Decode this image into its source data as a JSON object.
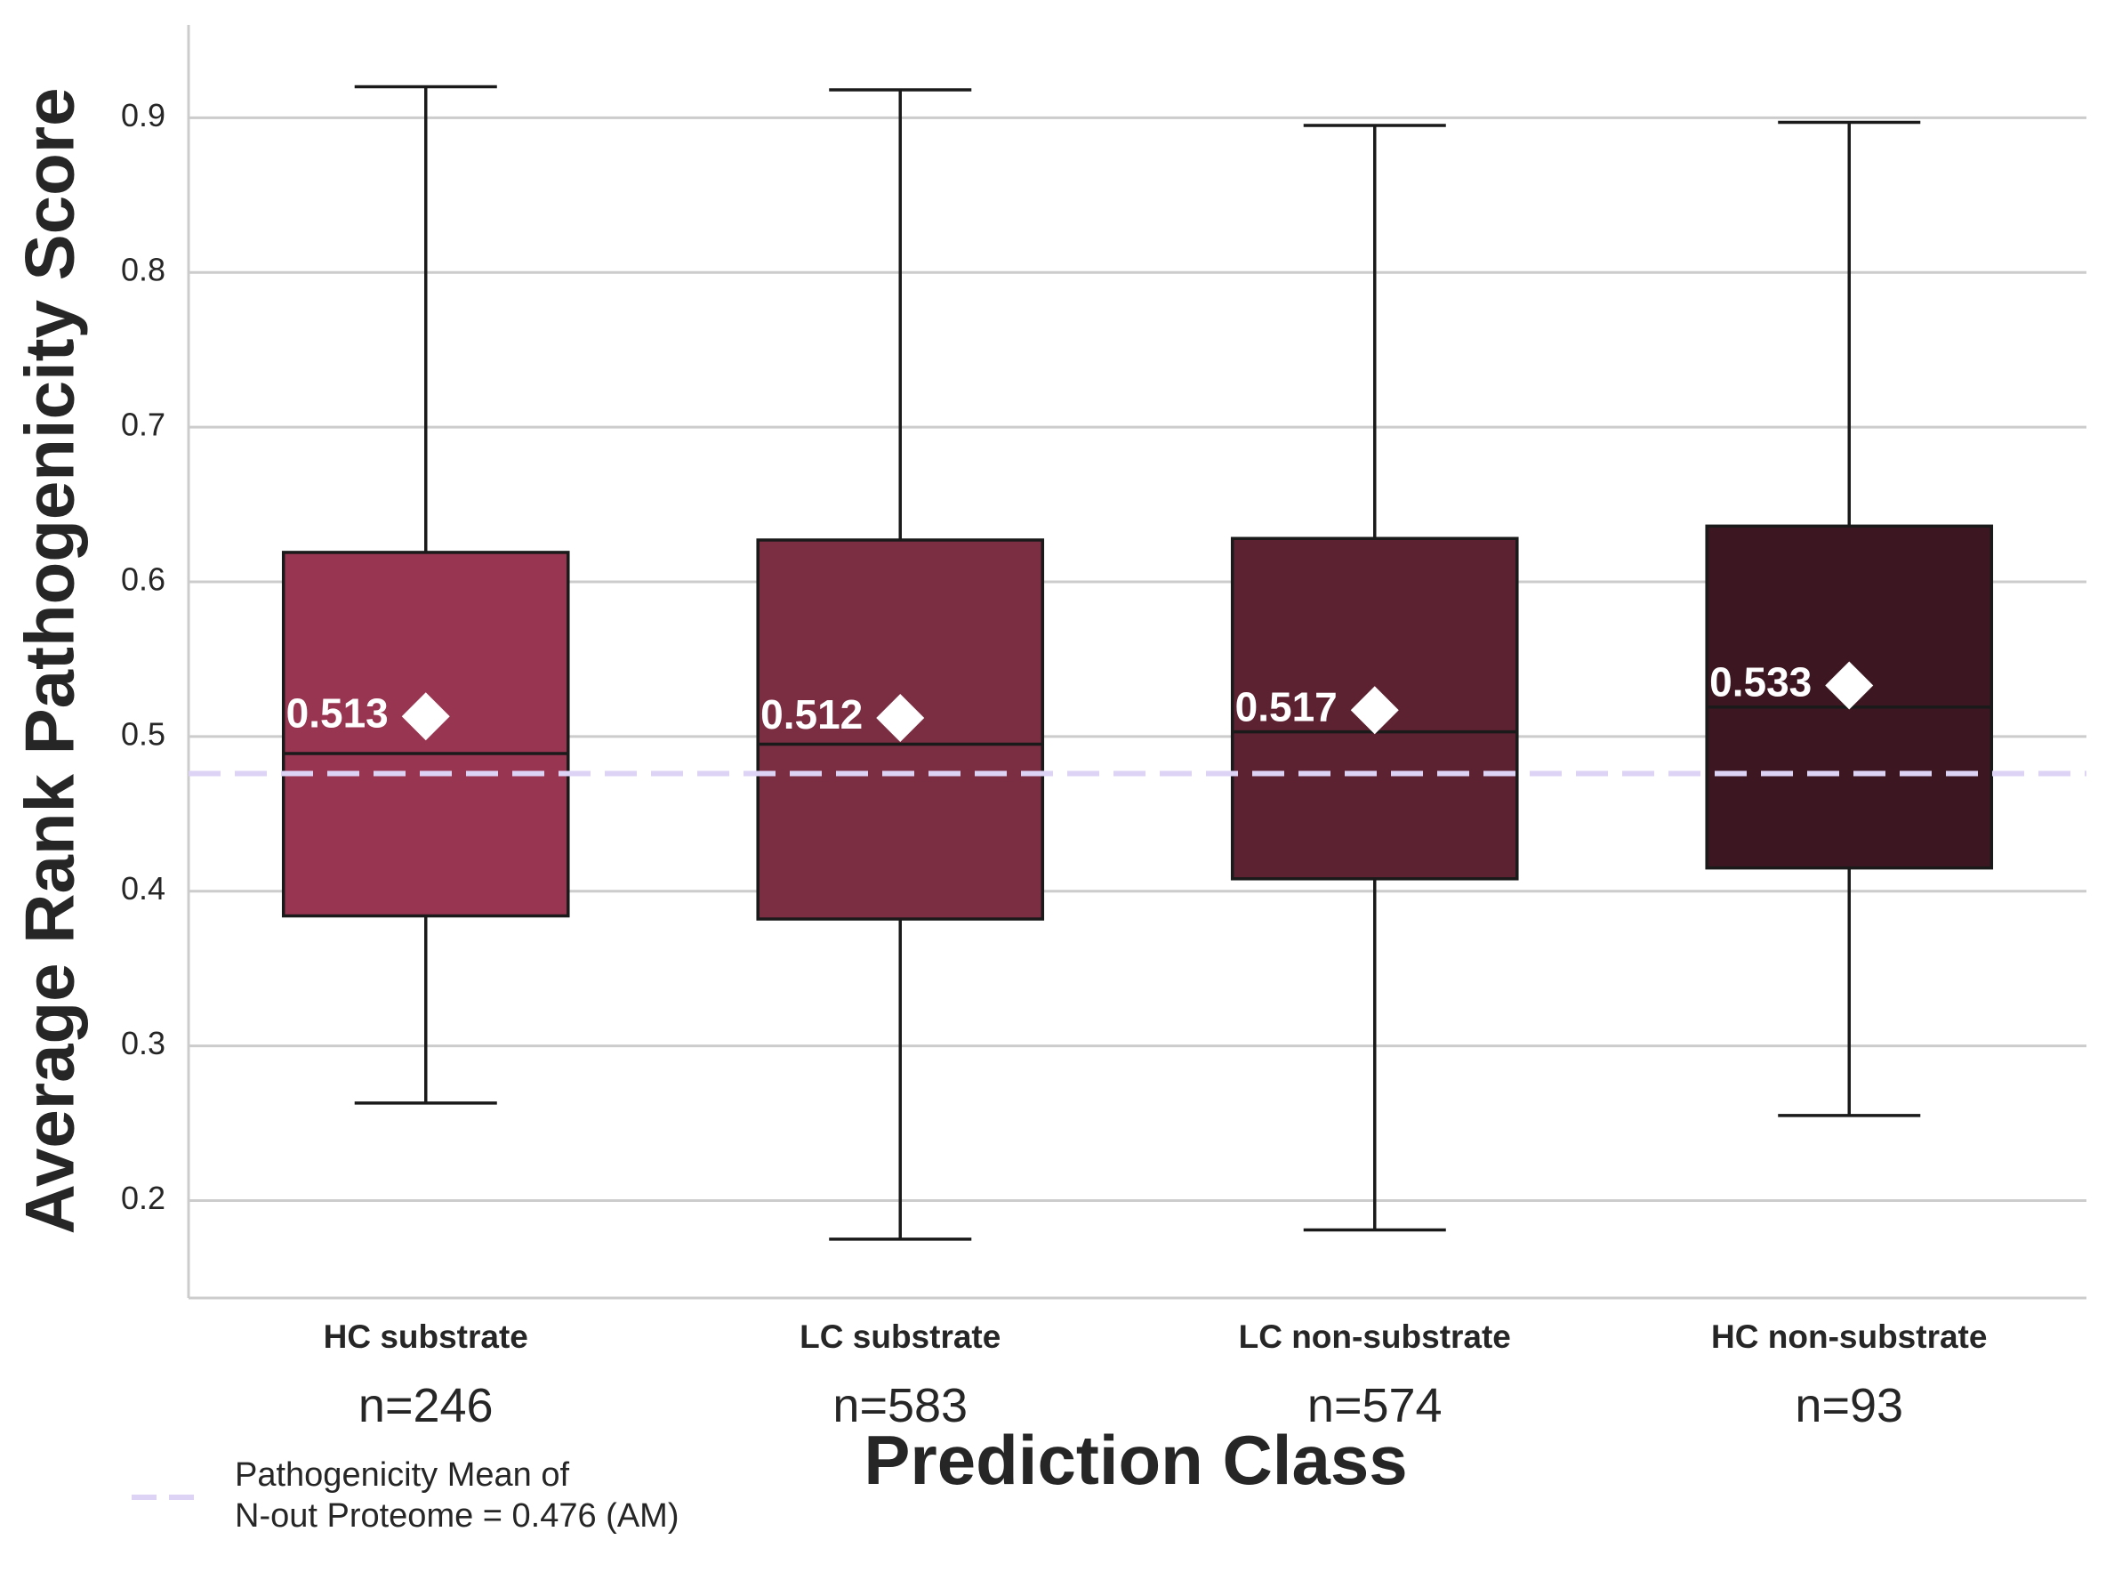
{
  "chart_data": {
    "type": "box",
    "xlabel": "Prediction Class",
    "ylabel": "Average Rank Pathogenicity Score",
    "ylim": [
      0.137,
      0.96
    ],
    "yticks": [
      "0.2",
      "0.3",
      "0.4",
      "0.5",
      "0.6",
      "0.7",
      "0.8",
      "0.9"
    ],
    "grid": "horizontal",
    "categories": [
      "HC substrate",
      "LC substrate",
      "LC non-substrate",
      "HC non-substrate"
    ],
    "counts": [
      "n=246",
      "n=583",
      "n=574",
      "n=93"
    ],
    "boxes": [
      {
        "whisker_low": 0.263,
        "q1": 0.384,
        "median": 0.489,
        "q3": 0.619,
        "whisker_high": 0.92,
        "mean": 0.513,
        "mean_label": "0.513",
        "color": "#983550"
      },
      {
        "whisker_low": 0.175,
        "q1": 0.382,
        "median": 0.495,
        "q3": 0.627,
        "whisker_high": 0.918,
        "mean": 0.512,
        "mean_label": "0.512",
        "color": "#7b2d42"
      },
      {
        "whisker_low": 0.181,
        "q1": 0.408,
        "median": 0.503,
        "q3": 0.628,
        "whisker_high": 0.895,
        "mean": 0.517,
        "mean_label": "0.517",
        "color": "#5d2232"
      },
      {
        "whisker_low": 0.255,
        "q1": 0.415,
        "median": 0.519,
        "q3": 0.636,
        "whisker_high": 0.897,
        "mean": 0.533,
        "mean_label": "0.533",
        "color": "#3c1722"
      }
    ],
    "reference_line": {
      "value": 0.476,
      "color": "#ddd3f5",
      "style": "dashed"
    },
    "legend": {
      "position": "bottom-left",
      "line1": "Pathogenicity Mean of",
      "line2": "N-out Proteome = 0.476 (AM)"
    }
  }
}
